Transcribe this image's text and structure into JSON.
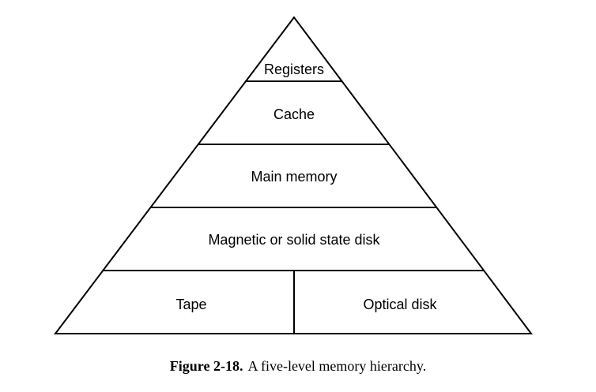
{
  "diagram": {
    "levels": [
      {
        "label": "Registers"
      },
      {
        "label": "Cache"
      },
      {
        "label": "Main memory"
      },
      {
        "label": "Magnetic or solid state disk"
      },
      {
        "label_left": "Tape",
        "label_right": "Optical disk"
      }
    ]
  },
  "caption": {
    "number": "Figure 2-18.",
    "text": "A five-level memory hierarchy."
  },
  "colors": {
    "stroke": "#000000",
    "background": "#ffffff"
  }
}
